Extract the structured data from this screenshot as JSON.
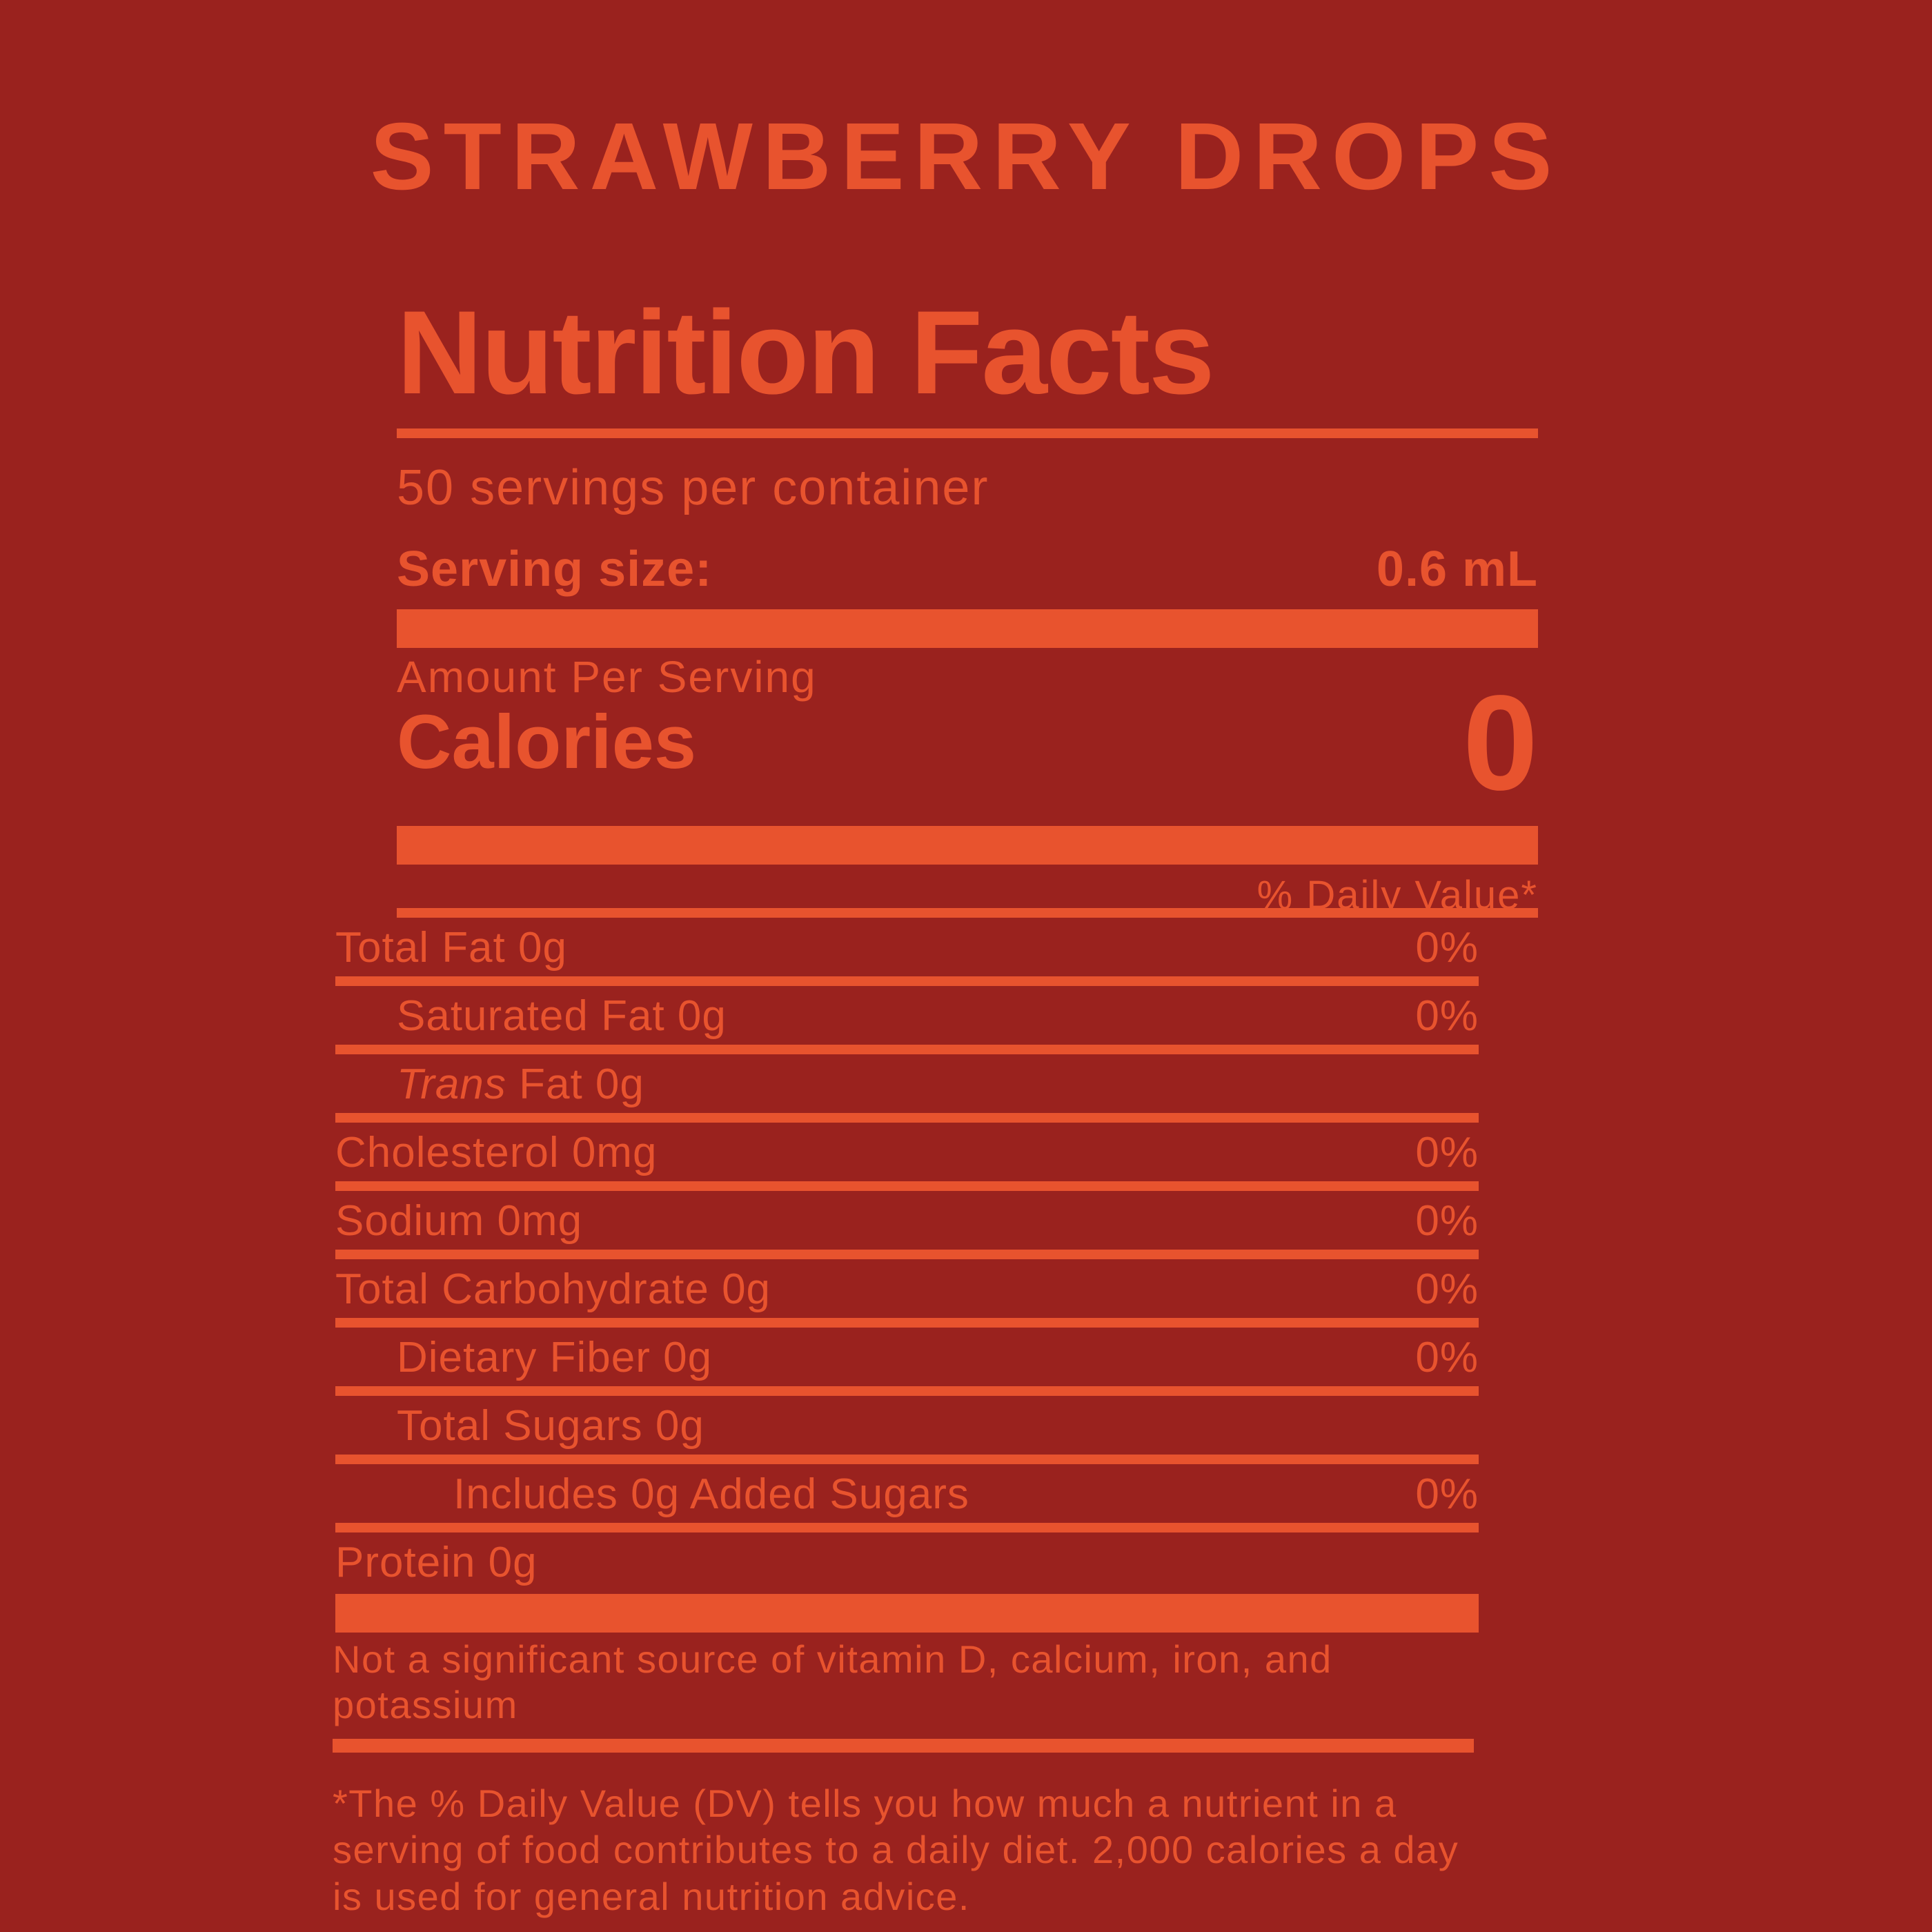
{
  "colors": {
    "background": "#9A221E",
    "accent": "#E8532E"
  },
  "product_title": "STRAWBERRY DROPS",
  "nutrition_label": {
    "heading": "Nutrition Facts",
    "servings_per_container": "50 servings per container",
    "serving_size": {
      "label": "Serving size:",
      "value": "0.6 mL"
    },
    "amount_per_serving": "Amount Per Serving",
    "calories": {
      "label": "Calories",
      "value": "0"
    },
    "daily_value_header": "% Daily Value*",
    "rows": [
      {
        "italic": "",
        "text": "Total Fat 0g",
        "dv": "0%"
      },
      {
        "italic": "",
        "text": "Saturated Fat 0g",
        "dv": "0%"
      },
      {
        "italic": "Trans",
        "text": " Fat 0g",
        "dv": ""
      },
      {
        "italic": "",
        "text": "Cholesterol 0mg",
        "dv": "0%"
      },
      {
        "italic": "",
        "text": "Sodium 0mg",
        "dv": "0%"
      },
      {
        "italic": "",
        "text": "Total Carbohydrate 0g",
        "dv": "0%"
      },
      {
        "italic": "",
        "text": "Dietary Fiber 0g",
        "dv": "0%"
      },
      {
        "italic": "",
        "text": "Total Sugars 0g",
        "dv": ""
      },
      {
        "italic": "",
        "text": "Includes 0g Added Sugars",
        "dv": "0%"
      },
      {
        "italic": "",
        "text": "Protein 0g",
        "dv": ""
      }
    ],
    "not_significant_note": "Not a significant source of vitamin D, calcium, iron, and\npotassium",
    "daily_value_footnote": "*The % Daily Value (DV) tells you how much a nutrient in a\nserving of food contributes to a daily diet. 2,000 calories a day\nis used for general nutrition advice."
  }
}
